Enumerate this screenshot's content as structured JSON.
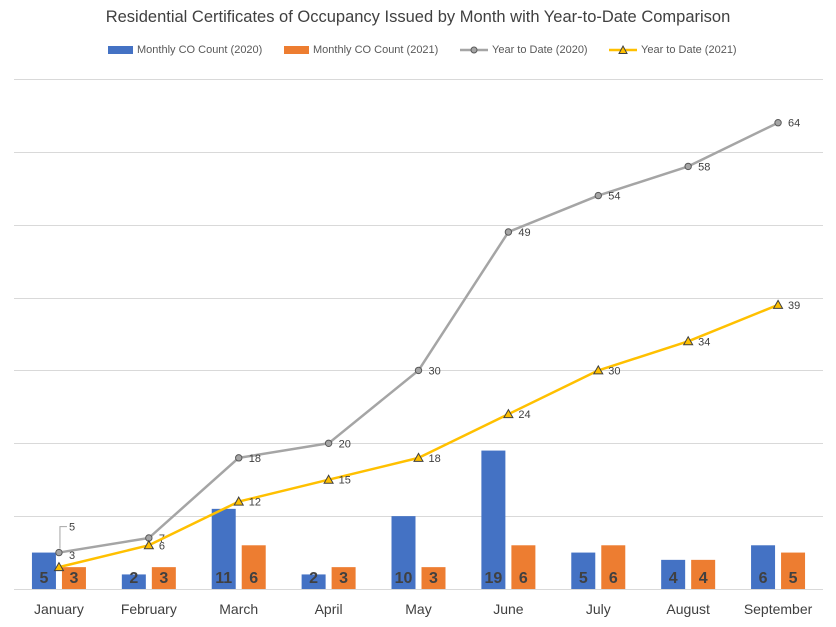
{
  "chart_data": {
    "type": "bar",
    "title": "Residential Certificates of Occupancy Issued by Month with Year-to-Date Comparison",
    "categories": [
      "January",
      "February",
      "March",
      "April",
      "May",
      "June",
      "July",
      "August",
      "September"
    ],
    "series": [
      {
        "name": "Monthly CO Count (2020)",
        "kind": "bar",
        "color": "#4472C4",
        "values": [
          5,
          2,
          11,
          2,
          10,
          19,
          5,
          4,
          6
        ]
      },
      {
        "name": "Monthly CO Count (2021)",
        "kind": "bar",
        "color": "#ED7D31",
        "values": [
          3,
          3,
          6,
          3,
          3,
          6,
          6,
          4,
          5
        ]
      },
      {
        "name": "Year to Date (2020)",
        "kind": "line",
        "color": "#A5A5A5",
        "marker": "circle",
        "values": [
          5,
          7,
          18,
          20,
          30,
          49,
          54,
          58,
          64
        ]
      },
      {
        "name": "Year to Date (2021)",
        "kind": "line",
        "color": "#FFC000",
        "marker": "triangle",
        "values": [
          3,
          6,
          12,
          15,
          18,
          24,
          30,
          34,
          39
        ]
      }
    ],
    "ylim": [
      0,
      70
    ],
    "y_axis_visible": false,
    "grid": true,
    "legend_position": "top"
  }
}
